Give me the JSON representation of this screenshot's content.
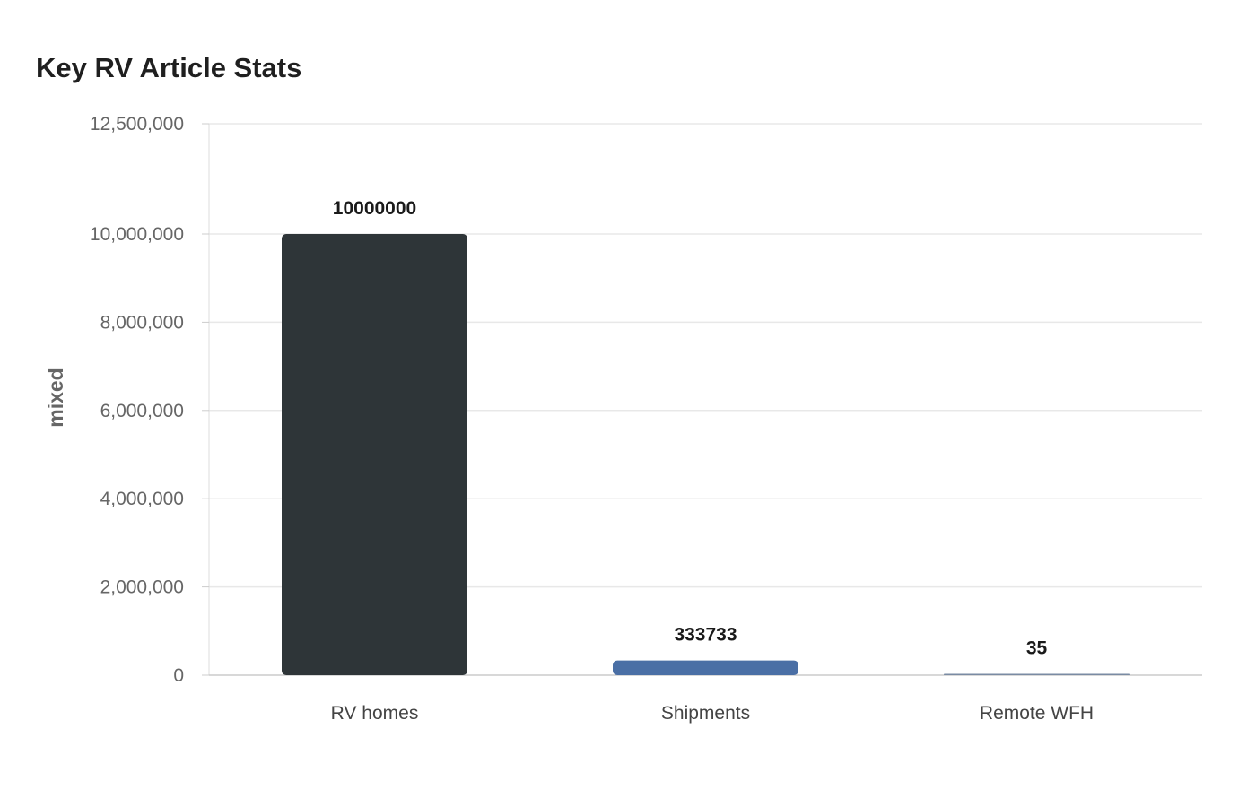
{
  "chart_data": {
    "type": "bar",
    "title": "Key RV Article Stats",
    "xlabel": "",
    "ylabel": "mixed",
    "categories": [
      "RV homes",
      "Shipments",
      "Remote WFH"
    ],
    "values": [
      10000000,
      333733,
      35
    ],
    "data_labels": [
      "10000000",
      "333733",
      "35"
    ],
    "colors": [
      "#2e3538",
      "#4a6fa5",
      "#7a8ba3"
    ],
    "ylim": [
      0,
      12500000
    ],
    "y_ticks": [
      0,
      2000000,
      4000000,
      6000000,
      8000000,
      10000000,
      12500000
    ],
    "y_tick_labels": [
      "0",
      "2,000,000",
      "4,000,000",
      "6,000,000",
      "8,000,000",
      "10,000,000",
      "12,500,000"
    ],
    "grid": true,
    "legend": "none"
  }
}
